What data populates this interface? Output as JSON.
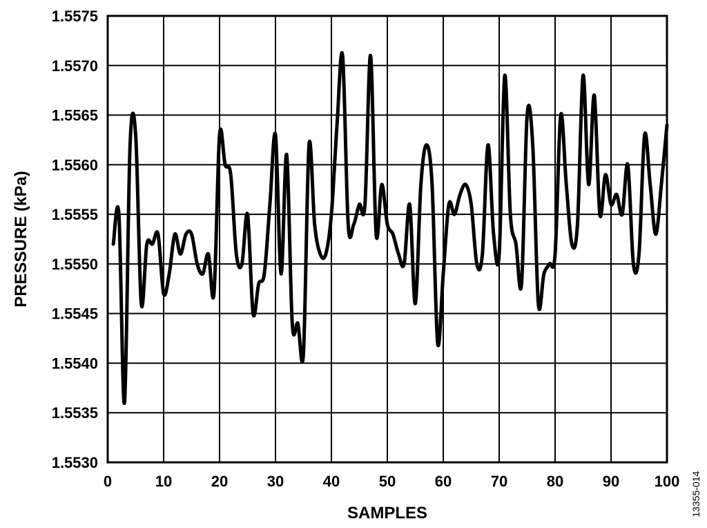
{
  "chart_data": {
    "type": "line",
    "xlabel": "SAMPLES",
    "ylabel": "PRESSURE (kPa)",
    "xlim": [
      0,
      100
    ],
    "ylim": [
      1.553,
      1.5575
    ],
    "x_ticks": [
      "0",
      "10",
      "20",
      "30",
      "40",
      "50",
      "60",
      "70",
      "80",
      "90",
      "100"
    ],
    "y_ticks": [
      "1.5530",
      "1.5535",
      "1.5540",
      "1.5545",
      "1.5550",
      "1.5555",
      "1.5560",
      "1.5565",
      "1.5570",
      "1.5575"
    ],
    "grid": true,
    "legend": "none",
    "line_color": "#000000",
    "figure_id": "13355-014",
    "series": [
      {
        "x": [
          1,
          2,
          3,
          4,
          5,
          6,
          7,
          8,
          9,
          10,
          11,
          12,
          13,
          14,
          15,
          16,
          17,
          18,
          19,
          20,
          21,
          22,
          23,
          24,
          25,
          26,
          27,
          28,
          29,
          30,
          31,
          32,
          33,
          34,
          35,
          36,
          37,
          38,
          39,
          40,
          41,
          42,
          43,
          44,
          45,
          46,
          47,
          48,
          49,
          50,
          51,
          52,
          53,
          54,
          55,
          56,
          57,
          58,
          59,
          60,
          61,
          62,
          63,
          64,
          65,
          66,
          67,
          68,
          69,
          70,
          71,
          72,
          73,
          74,
          75,
          76,
          77,
          78,
          79,
          80,
          81,
          82,
          83,
          84,
          85,
          86,
          87,
          88,
          89,
          90,
          91,
          92,
          93,
          94,
          95,
          96,
          97,
          98,
          99,
          100
        ],
        "values": [
          1.5552,
          1.5555,
          1.5536,
          1.5562,
          1.5563,
          1.5546,
          1.5552,
          1.5552,
          1.5553,
          1.5547,
          1.5549,
          1.5553,
          1.5551,
          1.5553,
          1.5553,
          1.555,
          1.5549,
          1.5551,
          1.5547,
          1.5563,
          1.556,
          1.5559,
          1.5551,
          1.555,
          1.5555,
          1.5545,
          1.5548,
          1.5549,
          1.5556,
          1.5563,
          1.5549,
          1.5561,
          1.5544,
          1.5544,
          1.5541,
          1.5562,
          1.5554,
          1.5551,
          1.5551,
          1.5555,
          1.5564,
          1.5571,
          1.5554,
          1.5554,
          1.5556,
          1.5556,
          1.5571,
          1.5553,
          1.5558,
          1.5554,
          1.5553,
          1.5551,
          1.555,
          1.5556,
          1.5546,
          1.5558,
          1.5562,
          1.5558,
          1.5542,
          1.5549,
          1.5556,
          1.5555,
          1.5557,
          1.5558,
          1.5556,
          1.555,
          1.5551,
          1.5562,
          1.5553,
          1.5551,
          1.5569,
          1.5555,
          1.5552,
          1.5548,
          1.5565,
          1.5562,
          1.5546,
          1.5549,
          1.555,
          1.5551,
          1.5565,
          1.5558,
          1.5552,
          1.5554,
          1.5569,
          1.5558,
          1.5567,
          1.5555,
          1.5559,
          1.5556,
          1.5557,
          1.5555,
          1.556,
          1.555,
          1.5551,
          1.5563,
          1.5558,
          1.5553,
          1.5558,
          1.5564
        ]
      }
    ]
  }
}
